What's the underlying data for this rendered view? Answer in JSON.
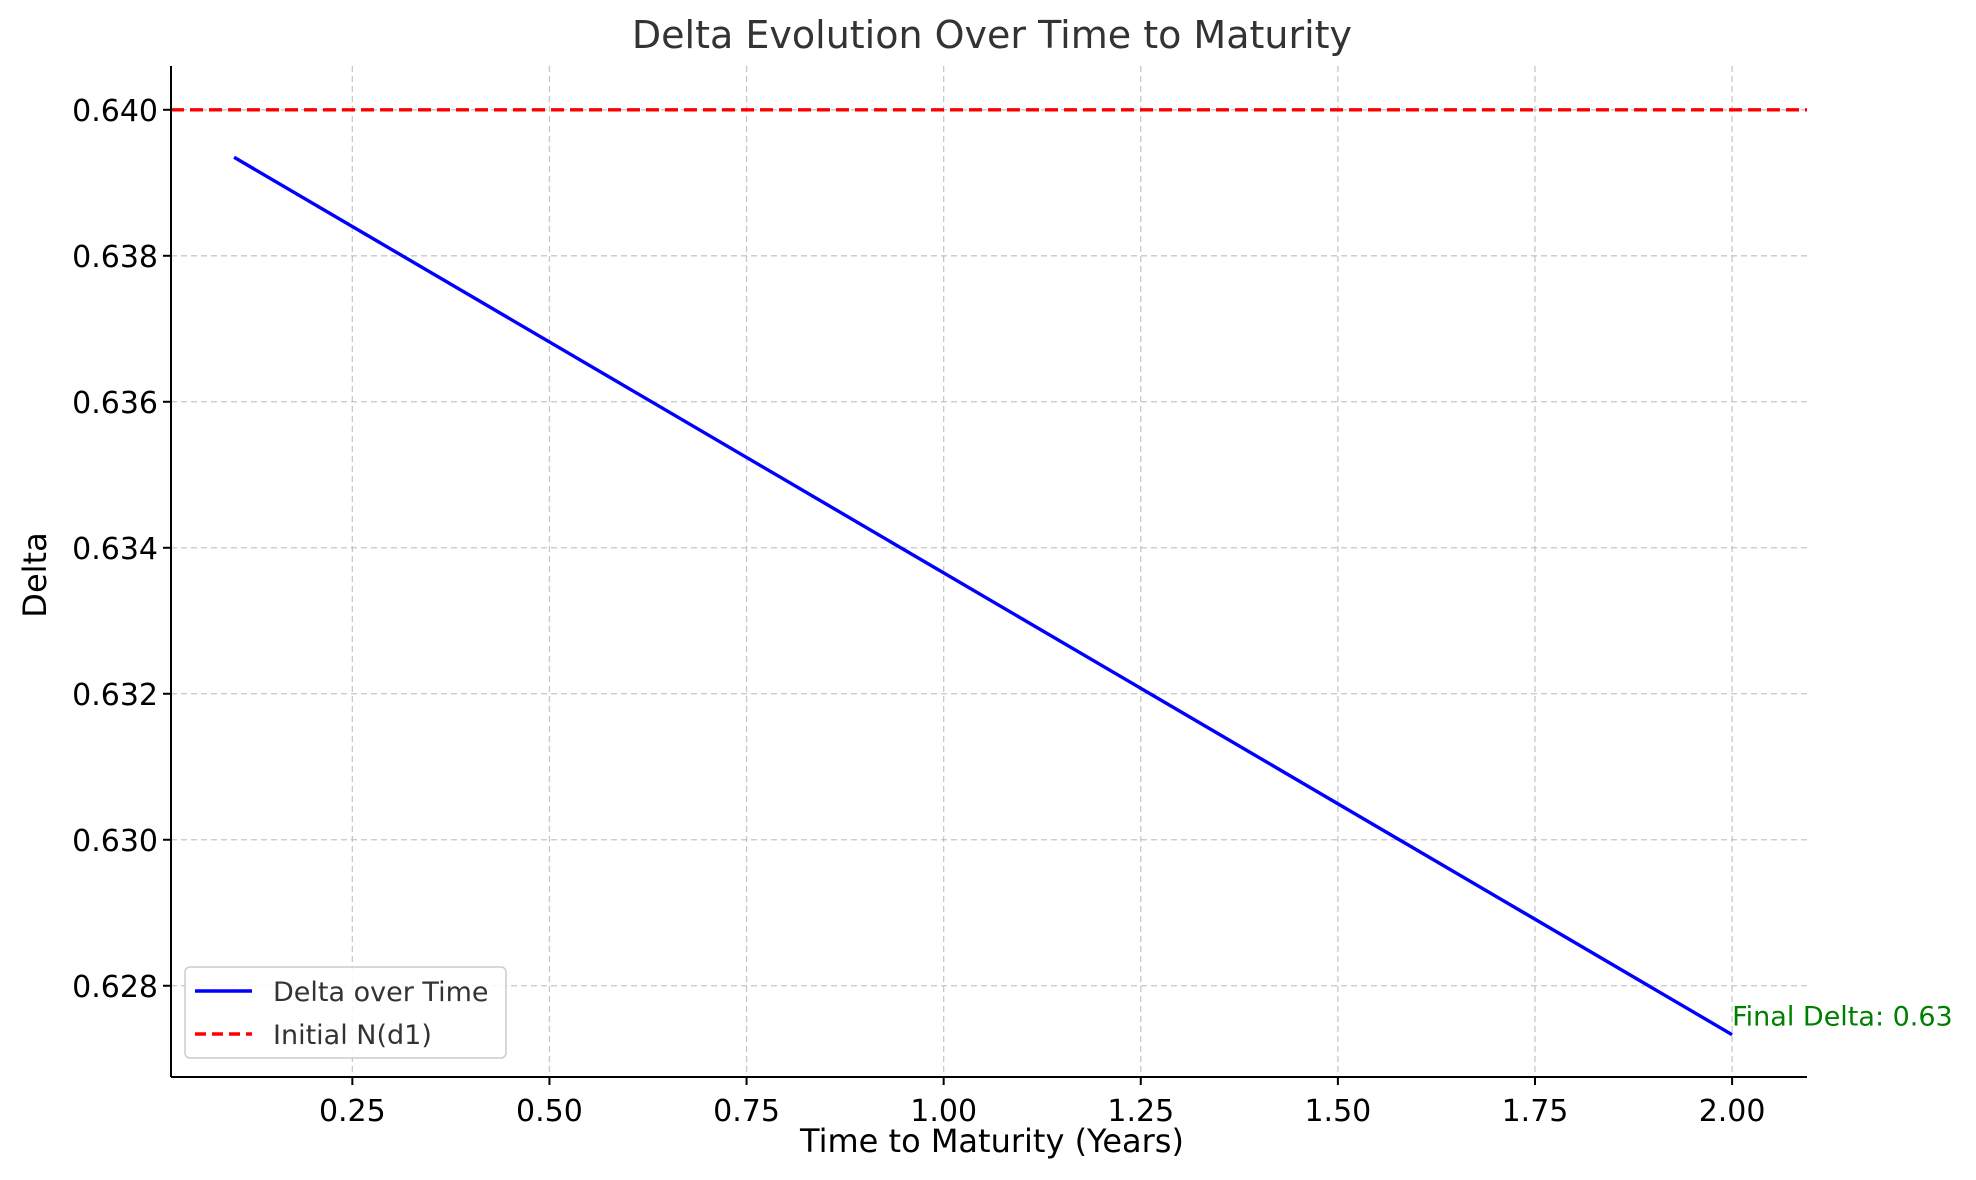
{
  "chart_data": {
    "type": "line",
    "title": "Delta Evolution Over Time to Maturity",
    "xlabel": "Time to Maturity (Years)",
    "ylabel": "Delta",
    "xlim": [
      0.02,
      2.095
    ],
    "ylim": [
      0.62675,
      0.6406
    ],
    "xticks": [
      0.25,
      0.5,
      0.75,
      1.0,
      1.25,
      1.5,
      1.75,
      2.0
    ],
    "xtick_labels": [
      "0.25",
      "0.50",
      "0.75",
      "1.00",
      "1.25",
      "1.50",
      "1.75",
      "2.00"
    ],
    "yticks": [
      0.628,
      0.63,
      0.632,
      0.634,
      0.636,
      0.638,
      0.64
    ],
    "ytick_labels": [
      "0.628",
      "0.630",
      "0.632",
      "0.634",
      "0.636",
      "0.638",
      "0.640"
    ],
    "grid": true,
    "legend_position": "lower-left",
    "series": [
      {
        "name": "Delta over Time",
        "style": "solid",
        "color": "#0000ff",
        "x": [
          0.1,
          2.0
        ],
        "y": [
          0.63935,
          0.62733
        ]
      }
    ],
    "reference_lines": [
      {
        "name": "Initial N(d1)",
        "orientation": "horizontal",
        "style": "dashed",
        "color": "#ff0000",
        "y": 0.64
      }
    ],
    "annotations": [
      {
        "text": "Final Delta: 0.63",
        "x": 2.0,
        "y": 0.62733,
        "color": "#008000"
      }
    ]
  }
}
